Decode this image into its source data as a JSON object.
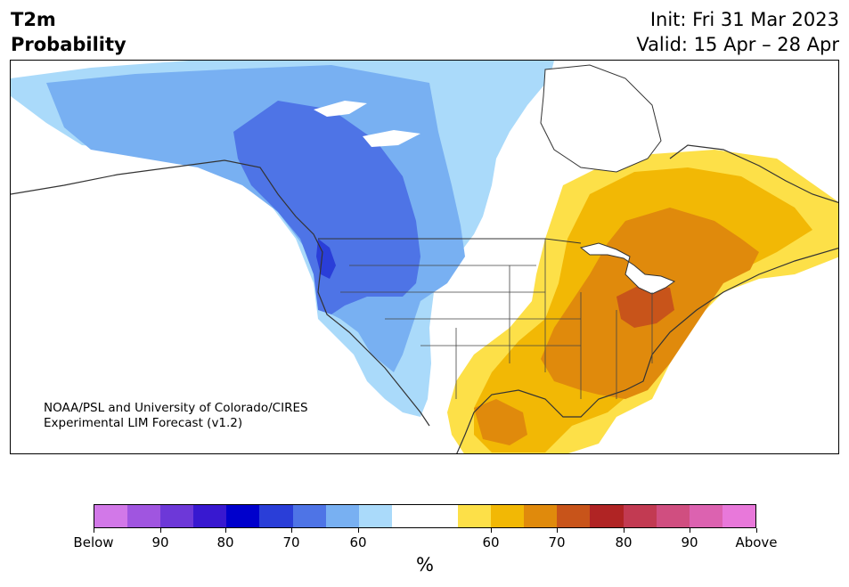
{
  "title": {
    "line1": "T2m",
    "line2": "Probability"
  },
  "init_text": "Init: Fri 31 Mar 2023",
  "valid_text": "Valid: 15 Apr – 28 Apr",
  "credit": {
    "line1": "NOAA/PSL and University of Colorado/CIRES",
    "line2": "Experimental LIM Forecast (v1.2)"
  },
  "colorbar": {
    "unit": "%",
    "colors": [
      "#d278e8",
      "#a055e0",
      "#6d38d8",
      "#3818d0",
      "#0000cc",
      "#2a3ed8",
      "#4e74e6",
      "#78b0f2",
      "#aadafa",
      "#ffffff",
      "#ffffff",
      "#fde048",
      "#f2b805",
      "#e08a0c",
      "#c8541a",
      "#b02424",
      "#c23a52",
      "#d04e80",
      "#dc62b0",
      "#e878da"
    ],
    "ticks": [
      "Below",
      "90",
      "80",
      "70",
      "60",
      "60",
      "70",
      "80",
      "90",
      "Above"
    ]
  },
  "map_colors": {
    "land": "#ffffff",
    "p60_cold": "#aadafa",
    "p70_cold": "#78b0f2",
    "p80_cold": "#4e74e6",
    "p90_cold": "#2a3ed8",
    "p60_warm": "#fde048",
    "p70_warm": "#f2b805",
    "p80_warm": "#e08a0c",
    "p90_warm": "#c8541a"
  }
}
